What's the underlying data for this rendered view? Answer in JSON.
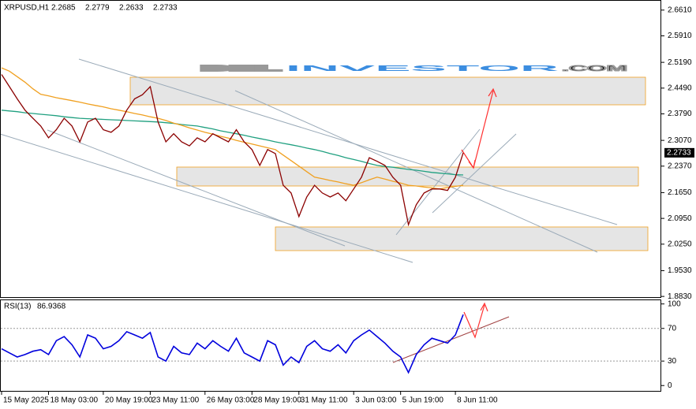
{
  "chart_data": [
    {
      "type": "line",
      "symbol": "XRPUSD,H1",
      "ohlc": [
        2.2685,
        2.2779,
        2.2633,
        2.2733
      ],
      "ylim": [
        1.879,
        2.682
      ],
      "yticks": [
        {
          "value": 2.661,
          "label": "2.6610"
        },
        {
          "value": 2.591,
          "label": "2.5910"
        },
        {
          "value": 2.519,
          "label": "2.5190"
        },
        {
          "value": 2.449,
          "label": "2.4490"
        },
        {
          "value": 2.379,
          "label": "2.3790"
        },
        {
          "value": 2.307,
          "label": "2.3070"
        },
        {
          "value": 2.237,
          "label": "2.2370"
        },
        {
          "value": 2.165,
          "label": "2.1650"
        },
        {
          "value": 2.095,
          "label": "2.0950"
        },
        {
          "value": 2.025,
          "label": "2.0250"
        },
        {
          "value": 1.953,
          "label": "1.9530"
        },
        {
          "value": 1.883,
          "label": "1.8830"
        }
      ],
      "grid": false,
      "series": [
        {
          "color": "#8b0000",
          "values": [
            2.486,
            2.453,
            2.42,
            2.389,
            2.367,
            2.346,
            2.314,
            2.336,
            2.367,
            2.346,
            2.303,
            2.357,
            2.367,
            2.336,
            2.329,
            2.346,
            2.389,
            2.42,
            2.431,
            2.453,
            2.357,
            2.303,
            2.325,
            2.303,
            2.292,
            2.314,
            2.303,
            2.325,
            2.314,
            2.303,
            2.336,
            2.303,
            2.282,
            2.239,
            2.282,
            2.271,
            2.185,
            2.164,
            2.1,
            2.153,
            2.185,
            2.164,
            2.153,
            2.164,
            2.143,
            2.175,
            2.207,
            2.26,
            2.25,
            2.239,
            2.207,
            2.185,
            2.078,
            2.132,
            2.164,
            2.175,
            2.175,
            2.171,
            2.207,
            2.2733
          ]
        },
        {
          "color": "#f0a020",
          "values": [
            2.504,
            2.495,
            2.48,
            2.465,
            2.447,
            2.432,
            2.428,
            2.423,
            2.419,
            2.415,
            2.411,
            2.406,
            2.402,
            2.398,
            2.393,
            2.389,
            2.385,
            2.38,
            2.376,
            2.371,
            2.367,
            2.361,
            2.354,
            2.348,
            2.341,
            2.335,
            2.329,
            2.324,
            2.318,
            2.313,
            2.307,
            2.302,
            2.297,
            2.292,
            2.287,
            2.282,
            2.267,
            2.252,
            2.237,
            2.222,
            2.207,
            2.203,
            2.198,
            2.194,
            2.189,
            2.185,
            2.192,
            2.2,
            2.207,
            2.202,
            2.196,
            2.191,
            2.185,
            2.183,
            2.18,
            2.178,
            2.175,
            2.179,
            2.182,
            2.185
          ]
        },
        {
          "color": "#20a080",
          "values": [
            2.389,
            2.387,
            2.385,
            2.382,
            2.38,
            2.378,
            2.376,
            2.374,
            2.371,
            2.369,
            2.367,
            2.366,
            2.365,
            2.364,
            2.363,
            2.362,
            2.361,
            2.36,
            2.359,
            2.358,
            2.357,
            2.355,
            2.353,
            2.35,
            2.348,
            2.346,
            2.342,
            2.338,
            2.333,
            2.329,
            2.325,
            2.321,
            2.316,
            2.312,
            2.308,
            2.303,
            2.299,
            2.295,
            2.291,
            2.286,
            2.282,
            2.277,
            2.271,
            2.266,
            2.26,
            2.255,
            2.25,
            2.244,
            2.239,
            2.236,
            2.234,
            2.231,
            2.228,
            2.226,
            2.223,
            2.22,
            2.218,
            2.216,
            2.214,
            2.213
          ]
        }
      ]
    },
    {
      "type": "line",
      "label": "RSI(13)",
      "ylim": [
        -7.5,
        105.5
      ],
      "yticks": [
        100,
        70,
        30,
        0
      ],
      "levels": [
        70,
        30
      ],
      "categories": [
        "15 May 2025",
        null,
        null,
        null,
        null,
        null,
        "18 May 03:00",
        null,
        null,
        null,
        null,
        null,
        null,
        "20 May 19:00",
        null,
        null,
        null,
        null,
        null,
        "23 May 11:00",
        null,
        null,
        null,
        null,
        null,
        null,
        "26 May 03:00",
        null,
        null,
        null,
        null,
        null,
        "28 May 19:00",
        null,
        null,
        null,
        null,
        null,
        "31 May 11:00",
        null,
        null,
        null,
        null,
        null,
        null,
        "3 Jun 03:00",
        null,
        null,
        null,
        null,
        null,
        "5 Jun 19:00",
        null,
        null,
        null,
        null,
        null,
        null,
        "8 Jun 11:00",
        null
      ],
      "series": [
        {
          "color": "#0000dd",
          "values": [
            45,
            40,
            35,
            38,
            42,
            44,
            38,
            55,
            60,
            50,
            35,
            62,
            58,
            45,
            48,
            55,
            66,
            62,
            58,
            65,
            35,
            30,
            48,
            40,
            38,
            52,
            45,
            55,
            48,
            42,
            58,
            40,
            35,
            30,
            55,
            50,
            25,
            35,
            28,
            48,
            55,
            45,
            42,
            50,
            40,
            55,
            62,
            68,
            60,
            52,
            42,
            35,
            16,
            38,
            50,
            58,
            55,
            52,
            62,
            86.9368
          ]
        }
      ]
    }
  ]
}
